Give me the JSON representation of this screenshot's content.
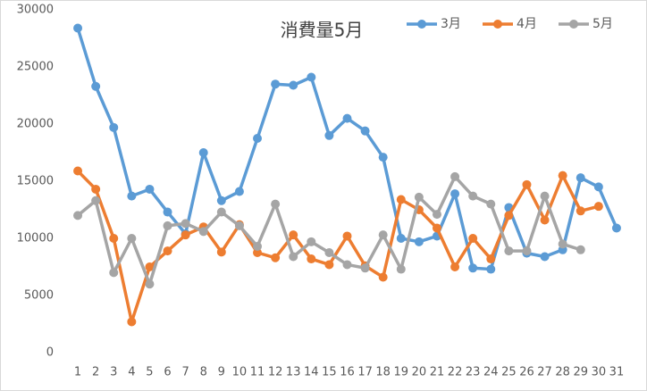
{
  "chart_data": {
    "type": "line",
    "title": "消費量5月",
    "categories": [
      "1",
      "2",
      "3",
      "4",
      "5",
      "6",
      "7",
      "8",
      "9",
      "10",
      "11",
      "12",
      "13",
      "14",
      "15",
      "16",
      "17",
      "18",
      "19",
      "20",
      "21",
      "22",
      "23",
      "24",
      "25",
      "26",
      "27",
      "28",
      "29",
      "30",
      "31"
    ],
    "series": [
      {
        "name": "3月",
        "color": "#5b9bd5",
        "values": [
          28400,
          23300,
          19700,
          13700,
          14300,
          12300,
          10400,
          17500,
          13300,
          14100,
          18750,
          23500,
          23400,
          24100,
          19000,
          20500,
          19400,
          17100,
          10000,
          9700,
          10200,
          13900,
          7400,
          7300,
          12700,
          8700,
          8400,
          9000,
          15300,
          14500,
          10900
        ]
      },
      {
        "name": "4月",
        "color": "#ed7d31",
        "values": [
          15900,
          14300,
          10000,
          2700,
          7500,
          8900,
          10300,
          11000,
          8800,
          11200,
          8750,
          8300,
          10300,
          8200,
          7700,
          10200,
          7600,
          6600,
          13400,
          12500,
          10900,
          7500,
          10000,
          8200,
          12000,
          14700,
          11600,
          15500,
          12400,
          12800,
          null
        ]
      },
      {
        "name": "5月",
        "color": "#a5a5a5",
        "values": [
          12000,
          13300,
          7000,
          10000,
          6000,
          11100,
          11300,
          10600,
          12300,
          11100,
          9300,
          13000,
          8400,
          9700,
          8750,
          7700,
          7400,
          10300,
          7300,
          13600,
          12100,
          15400,
          13700,
          13000,
          8900,
          8900,
          13700,
          9500,
          9000,
          null,
          null
        ]
      }
    ],
    "ylim": [
      0,
      30000
    ],
    "yticks": [
      0,
      5000,
      10000,
      15000,
      20000,
      25000,
      30000
    ],
    "grid": false,
    "legend": "top-right"
  }
}
